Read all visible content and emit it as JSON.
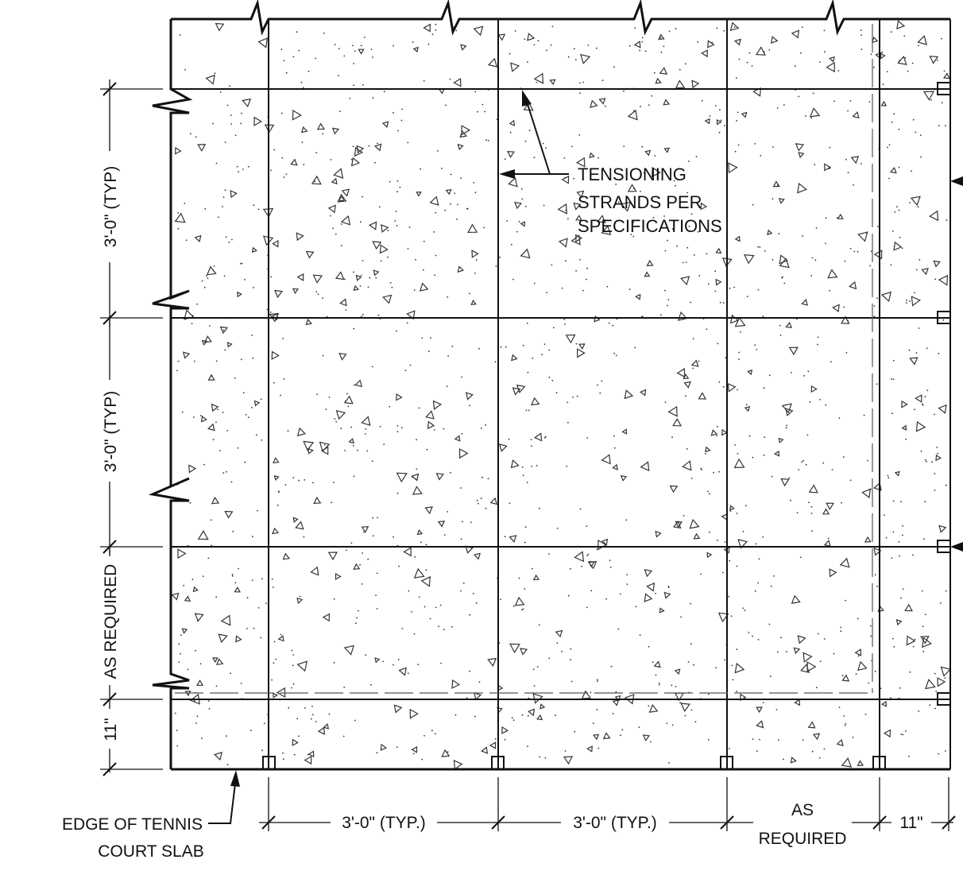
{
  "labels": {
    "tensioning": [
      "TENSIONING",
      "STRANDS PER",
      "SPECIFICATIONS"
    ],
    "edge": [
      "EDGE OF TENNIS",
      "COURT SLAB"
    ]
  },
  "dimensions": {
    "vertical": [
      "3'-0\" (TYP)",
      "3'-0\" (TYP)",
      "AS REQUIRED",
      "11\""
    ],
    "horizontal": [
      "3'-0\" (TYP.)",
      "3'-0\" (TYP.)",
      "AS",
      "REQUIRED",
      "11\""
    ]
  },
  "colors": {
    "ink": "#111111",
    "background": "#ffffff",
    "dashed": "#555555"
  }
}
